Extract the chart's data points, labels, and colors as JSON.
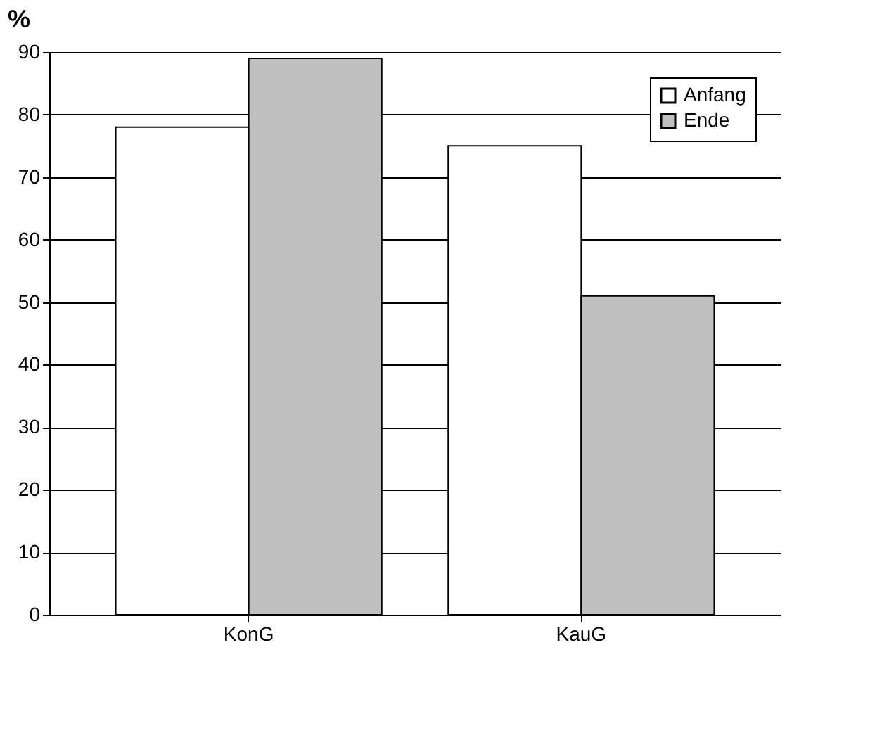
{
  "chart_data": {
    "type": "bar",
    "ylabel": "%",
    "categories": [
      "KonG",
      "KauG"
    ],
    "series": [
      {
        "name": "Anfang",
        "color": "#ffffff",
        "values": [
          78,
          75
        ]
      },
      {
        "name": "Ende",
        "color": "#c0c0c0",
        "values": [
          89,
          51
        ]
      }
    ],
    "ylim": [
      0,
      90
    ],
    "yticks": [
      0,
      10,
      20,
      30,
      40,
      50,
      60,
      70,
      80,
      90
    ],
    "grid": "y",
    "legend": "top right"
  }
}
